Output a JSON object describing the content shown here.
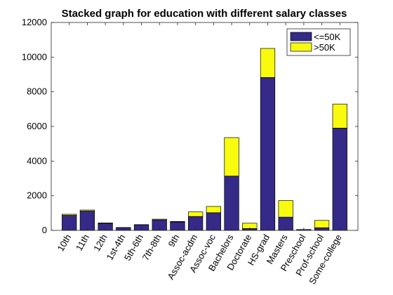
{
  "chart_data": {
    "type": "bar",
    "stacked": true,
    "title": "Stacked graph for education with different salary classes",
    "xlabel": "",
    "ylabel": "",
    "ylim": [
      0,
      12000
    ],
    "yticks": [
      0,
      2000,
      4000,
      6000,
      8000,
      10000,
      12000
    ],
    "categories": [
      "10th",
      "11th",
      "12th",
      "1st-4th",
      "5th-6th",
      "7th-8th",
      "9th",
      "Assoc-acdm",
      "Assoc-voc",
      "Bachelors",
      "Doctorate",
      "HS-grad",
      "Masters",
      "Preschool",
      "Prof-school",
      "Some-college"
    ],
    "series": [
      {
        "name": "<=50K",
        "color": "#352a87",
        "values": [
          870,
          1115,
          400,
          162,
          317,
          606,
          487,
          802,
          1021,
          3134,
          107,
          8826,
          764,
          51,
          153,
          5904
        ]
      },
      {
        "name": ">50K",
        "color": "#f9fb0e",
        "values": [
          62,
          60,
          33,
          6,
          16,
          40,
          27,
          265,
          361,
          2221,
          306,
          1675,
          959,
          0,
          423,
          1387
        ]
      }
    ],
    "legend_position": "top-right",
    "grid": false
  }
}
